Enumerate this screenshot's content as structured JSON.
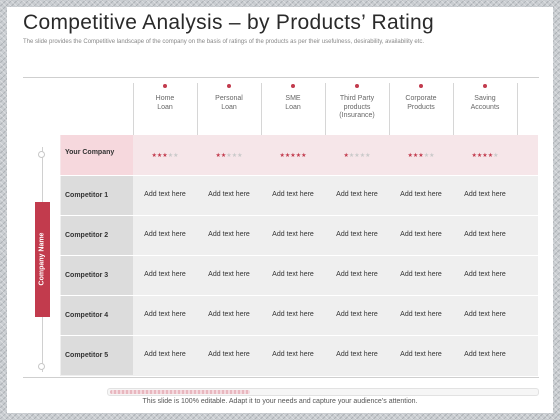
{
  "slide": {
    "title": "Competitive Analysis – by Products’ Rating",
    "subtitle": "The slide provides the Competitive landscape of the company on the basis of ratings of the products as per their usefulness, desirability, availability etc.",
    "footer": "This slide is 100% editable. Adapt it to your needs and capture your audience’s attention."
  },
  "table": {
    "columns": [
      "Home\nLoan",
      "Personal\nLoan",
      "SME\nLoan",
      "Third Party\nproducts\n(Insurance)",
      "Corporate\nProducts",
      "Saving\nAccounts"
    ],
    "side_label": "Company Name",
    "your_company": {
      "label": "Your Company",
      "ratings": [
        3,
        2,
        5,
        1,
        3,
        4
      ],
      "max_rating": 5
    },
    "competitors": [
      {
        "label": "Competitor 1",
        "cells": [
          "Add text here",
          "Add text here",
          "Add text here",
          "Add text here",
          "Add text here",
          "Add text here"
        ]
      },
      {
        "label": "Competitor 2",
        "cells": [
          "Add text here",
          "Add text here",
          "Add text here",
          "Add text here",
          "Add text here",
          "Add text here"
        ]
      },
      {
        "label": "Competitor 3",
        "cells": [
          "Add text here",
          "Add text here",
          "Add text here",
          "Add text here",
          "Add text here",
          "Add text here"
        ]
      },
      {
        "label": "Competitor 4",
        "cells": [
          "Add text here",
          "Add text here",
          "Add text here",
          "Add text here",
          "Add text here",
          "Add text here"
        ]
      },
      {
        "label": "Competitor 5",
        "cells": [
          "Add text here",
          "Add text here",
          "Add text here",
          "Add text here",
          "Add text here",
          "Add text here"
        ]
      }
    ]
  },
  "colors": {
    "accent": "#c23b4d",
    "your_row_bg": "#f6e6e9",
    "competitor_row_bg": "#efefef",
    "star_off": "#c9c9c9"
  },
  "icons": {
    "star": "star-icon",
    "marker": "dot-marker-icon"
  }
}
